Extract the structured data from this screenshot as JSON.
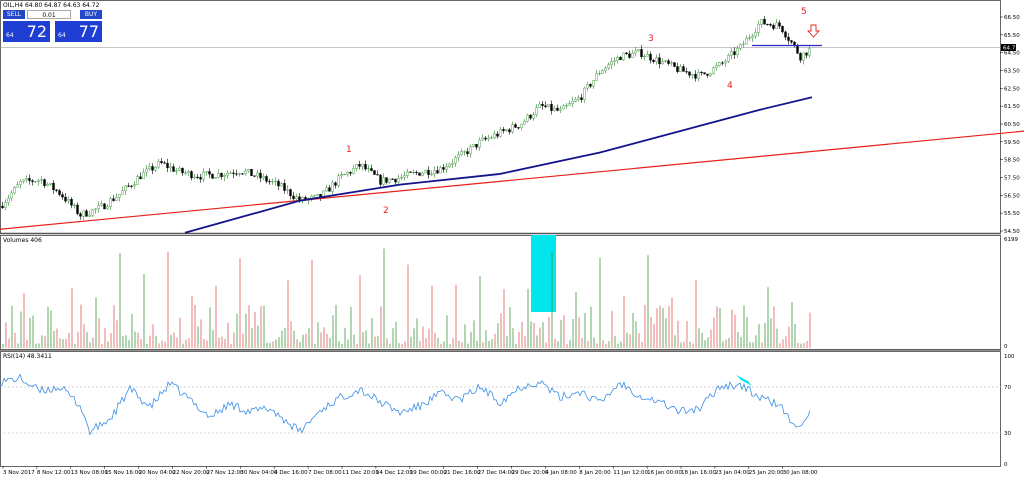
{
  "header": {
    "symbol_info": "OIL,H4  64.80 64.87 64.63 64.72"
  },
  "trade_panel": {
    "sell_label": "SELL",
    "buy_label": "BUY",
    "lot_value": "0.01",
    "sell_price_small": "64",
    "sell_price_big": "72",
    "buy_price_small": "64",
    "buy_price_big": "77"
  },
  "price_axis": {
    "labels": [
      "66.50",
      "65.50",
      "64.50",
      "63.50",
      "62.50",
      "61.50",
      "60.50",
      "59.50",
      "58.50",
      "57.50",
      "56.50",
      "55.50",
      "54.50"
    ],
    "current_price": "64.72"
  },
  "wave_labels": [
    "1",
    "2",
    "3",
    "4",
    "5"
  ],
  "volumes_panel": {
    "title": "Volumes 406",
    "max_label": "6199",
    "min_label": "0"
  },
  "rsi_panel": {
    "title": "RSI(14) 48.3411",
    "levels": [
      "100",
      "70",
      "30",
      "0"
    ]
  },
  "time_axis": {
    "labels": [
      "3 Nov 2017",
      "8 Nov 12:00",
      "13 Nov 08:00",
      "15 Nov 16:00",
      "20 Nov 04:00",
      "22 Nov 20:00",
      "27 Nov 12:00",
      "30 Nov 04:00",
      "4 Dec 16:00",
      "7 Dec 08:00",
      "11 Dec 20:00",
      "14 Dec 12:00",
      "19 Dec 00:00",
      "21 Dec 16:00",
      "27 Dec 04:00",
      "29 Dec 20:00",
      "4 Jan 08:00",
      "8 Jan 20:00",
      "11 Jan 12:00",
      "16 Jan 00:00",
      "18 Jan 16:00",
      "23 Jan 04:00",
      "25 Jan 20:00",
      "30 Jan 08:00"
    ]
  },
  "colors": {
    "bull_candle": "#2a8a2a",
    "bear_candle": "#000000",
    "ma_line": "#14148c",
    "trend_line": "#e8201c",
    "resistance_line": "#2a2ac8",
    "volume_up": "#3c9a3c",
    "volume_down": "#e05a5a",
    "highlight": "#00e5ee",
    "rsi_line": "#3a8ee6"
  },
  "chart_data": {
    "type": "line",
    "price_series": [
      {
        "name": "",
        "x_index": [
          0,
          20,
          40,
          60,
          80,
          100,
          120,
          140,
          160,
          180,
          200,
          220,
          240,
          260,
          280,
          300,
          320,
          340,
          360,
          380,
          400,
          420,
          440,
          460,
          480,
          500,
          520,
          540,
          560,
          580,
          600,
          620,
          640,
          660,
          680,
          700,
          720,
          740,
          760,
          780,
          800,
          810
        ],
        "values": [
          55.9,
          57.2,
          57.4,
          56.6,
          55.4,
          55.8,
          56.6,
          57.6,
          58.3,
          57.8,
          57.6,
          57.7,
          57.9,
          57.5,
          57.0,
          56.2,
          56.4,
          57.5,
          58.2,
          57.3,
          57.5,
          57.8,
          58.0,
          58.7,
          59.5,
          60.0,
          60.5,
          61.5,
          61.2,
          62.0,
          63.5,
          64.3,
          64.5,
          64.0,
          63.5,
          63.2,
          63.8,
          64.8,
          66.2,
          66.0,
          64.3,
          64.7
        ]
      }
    ],
    "moving_average": {
      "name": "",
      "x_index": [
        185,
        300,
        400,
        500,
        600,
        700,
        760,
        812
      ],
      "values": [
        54.4,
        56.2,
        57.1,
        57.7,
        58.9,
        60.4,
        61.3,
        62.0
      ]
    },
    "trend_line": {
      "x_index": [
        0,
        1024
      ],
      "values": [
        54.6,
        60.1
      ]
    },
    "resistance_line": {
      "x_index": [
        752,
        822
      ],
      "values": [
        64.9,
        64.9
      ]
    },
    "rsi_series": {
      "name": "",
      "x_index": [
        0,
        20,
        40,
        60,
        80,
        90,
        110,
        130,
        150,
        170,
        190,
        210,
        230,
        250,
        270,
        300,
        320,
        340,
        360,
        380,
        400,
        420,
        440,
        460,
        480,
        500,
        520,
        540,
        560,
        580,
        600,
        620,
        640,
        660,
        680,
        700,
        720,
        740,
        760,
        780,
        795,
        810
      ],
      "values": [
        77,
        80,
        68,
        72,
        55,
        30,
        42,
        70,
        53,
        75,
        60,
        44,
        56,
        49,
        52,
        30,
        50,
        62,
        70,
        58,
        48,
        54,
        66,
        60,
        72,
        58,
        72,
        77,
        62,
        68,
        57,
        76,
        64,
        58,
        49,
        52,
        73,
        74,
        62,
        55,
        33,
        48
      ]
    },
    "ylim_price": [
      54.5,
      66.5
    ],
    "ylim_rsi": [
      0,
      100
    ]
  }
}
